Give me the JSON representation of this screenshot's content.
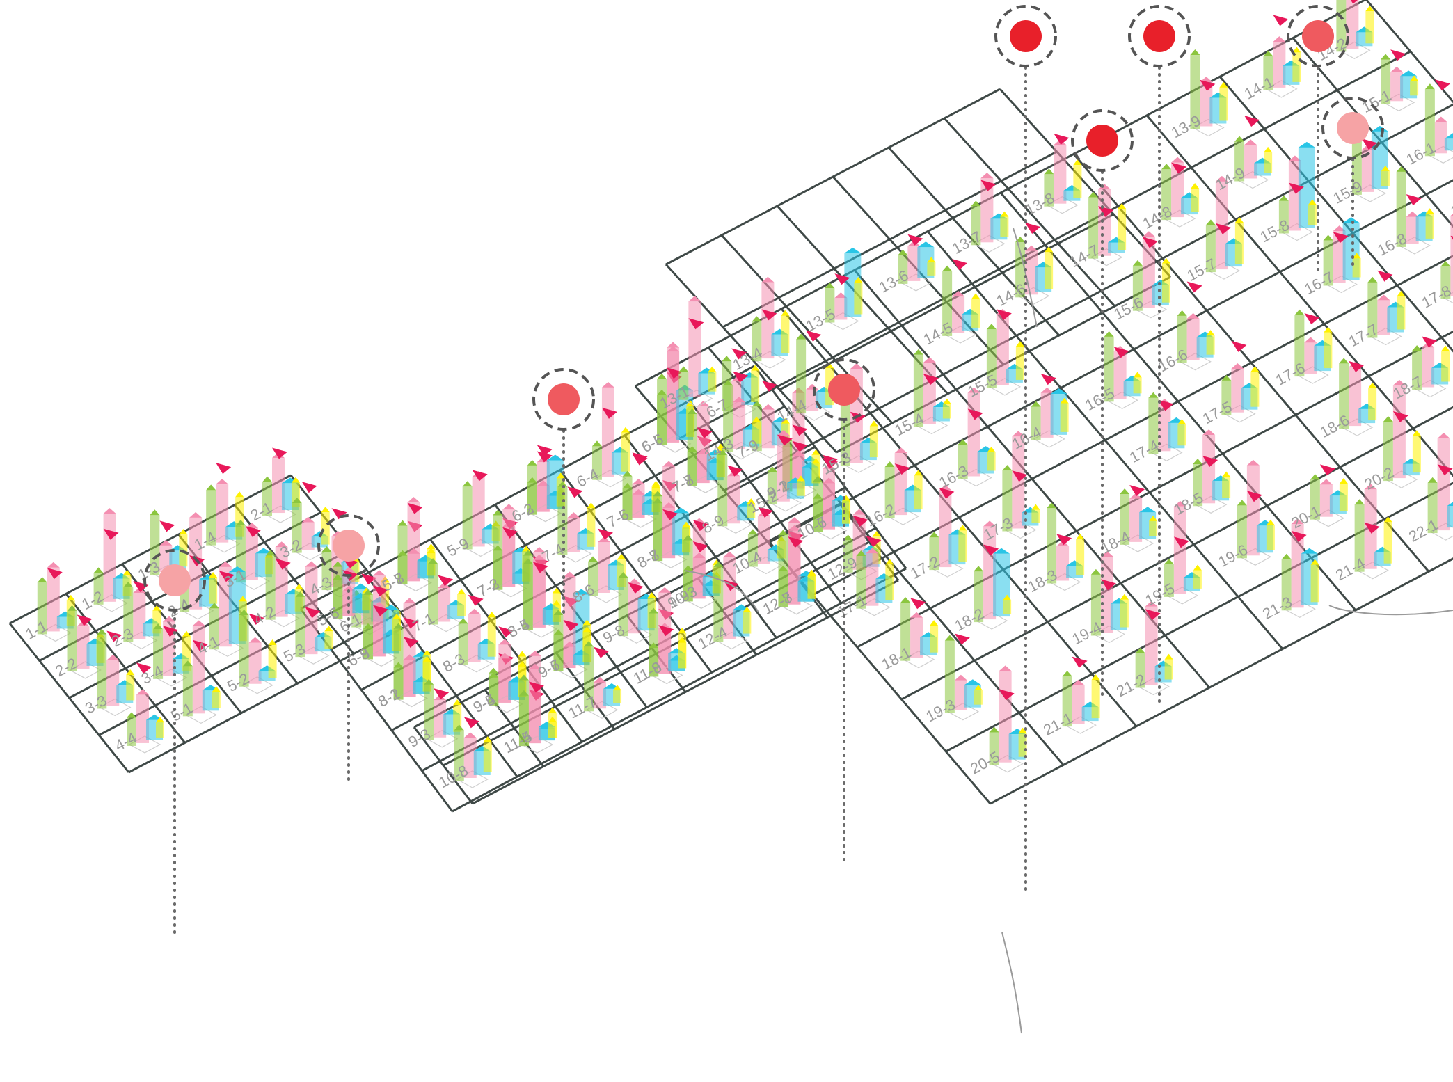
{
  "diagram": {
    "colors": {
      "grid": "#3f4947",
      "green": "#8cc63f",
      "pink": "#f48fb1",
      "magenta": "#e8185a",
      "yellow": "#fff200",
      "cyan": "#29c5e6",
      "orange": "#f7a600",
      "purple": "#6c3f99",
      "marker_strong": "#e8202a",
      "marker_medium": "#ef5a5f",
      "marker_light": "#f6a3a5"
    },
    "icons": [
      "target-marker-icon",
      "flow-arrow-icon",
      "block-prism-icon"
    ],
    "districts": [
      {
        "name": "district-1",
        "cells": [
          {
            "label": "1-1"
          },
          {
            "label": "1-2"
          },
          {
            "label": "1-3"
          },
          {
            "label": "1-4"
          },
          {
            "label": "2-1"
          },
          {
            "label": "2-2"
          },
          {
            "label": "2-3"
          },
          {
            "label": "2-4"
          },
          {
            "label": "3-1"
          },
          {
            "label": "3-2"
          },
          {
            "label": "3-3"
          },
          {
            "label": "3-4"
          },
          {
            "label": "4-1"
          },
          {
            "label": "4-2"
          },
          {
            "label": "4-3"
          },
          {
            "label": "4-4"
          },
          {
            "label": "5-1"
          },
          {
            "label": "5-2"
          },
          {
            "label": "5-3"
          },
          {
            "label": "6-1"
          }
        ]
      },
      {
        "name": "district-2",
        "cells": [
          {
            "label": "5-5"
          },
          {
            "label": "5-6"
          },
          {
            "label": "5-7"
          },
          {
            "label": "5-8"
          },
          {
            "label": "5-9"
          },
          {
            "label": "6-2"
          },
          {
            "label": "6-3"
          },
          {
            "label": "6-4"
          },
          {
            "label": "6-5"
          },
          {
            "label": "6-6"
          },
          {
            "label": "6-7"
          },
          {
            "label": "6-8"
          },
          {
            "label": "6-9"
          },
          {
            "label": "7-1"
          },
          {
            "label": "7-2"
          },
          {
            "label": "7-3"
          },
          {
            "label": "7-4"
          },
          {
            "label": "7-5"
          },
          {
            "label": "7-6"
          },
          {
            "label": "7-7"
          },
          {
            "label": "7-8"
          },
          {
            "label": "7-9"
          },
          {
            "label": "8-1"
          },
          {
            "label": "8-2"
          },
          {
            "label": "8-3"
          },
          {
            "label": "8-4"
          },
          {
            "label": "8-5"
          },
          {
            "label": "8-6"
          },
          {
            "label": "8-7"
          },
          {
            "label": "8-8"
          },
          {
            "label": "8-9"
          },
          {
            "label": "9-1"
          },
          {
            "label": "9-2"
          },
          {
            "label": "9-3"
          },
          {
            "label": "9-4"
          },
          {
            "label": "9-5"
          },
          {
            "label": "9-6"
          },
          {
            "label": "9-7"
          },
          {
            "label": "9-8"
          },
          {
            "label": "9-9"
          },
          {
            "label": "10-3"
          },
          {
            "label": "10-4"
          },
          {
            "label": "10-6"
          },
          {
            "label": "10-7"
          },
          {
            "label": "10-8"
          },
          {
            "label": "11-4"
          },
          {
            "label": "11-5"
          },
          {
            "label": "11-7"
          },
          {
            "label": "11-8"
          },
          {
            "label": "11-9"
          },
          {
            "label": "12-4"
          },
          {
            "label": "12-7"
          },
          {
            "label": "12-8"
          },
          {
            "label": "12-9"
          }
        ]
      },
      {
        "name": "district-3",
        "cells": [
          {
            "label": "13-1"
          },
          {
            "label": "13-4"
          },
          {
            "label": "13-5"
          },
          {
            "label": "13-6"
          },
          {
            "label": "13-7"
          },
          {
            "label": "13-8"
          },
          {
            "label": "13-9"
          },
          {
            "label": "14-1"
          },
          {
            "label": "14-2"
          },
          {
            "label": "14-3"
          },
          {
            "label": "14-4"
          },
          {
            "label": "14-5"
          },
          {
            "label": "14-6"
          },
          {
            "label": "14-7"
          },
          {
            "label": "14-8"
          },
          {
            "label": "14-9"
          },
          {
            "label": "15-1"
          },
          {
            "label": "15-2"
          },
          {
            "label": "15-3"
          },
          {
            "label": "15-4"
          },
          {
            "label": "15-5"
          },
          {
            "label": "15-6"
          },
          {
            "label": "15-7"
          },
          {
            "label": "15-8"
          },
          {
            "label": "15-9"
          },
          {
            "label": "16-1"
          },
          {
            "label": "16-2"
          },
          {
            "label": "16-3"
          },
          {
            "label": "16-4"
          },
          {
            "label": "16-5"
          },
          {
            "label": "16-6"
          },
          {
            "label": "16-7"
          },
          {
            "label": "16-8"
          },
          {
            "label": "16-9"
          },
          {
            "label": "17-1"
          },
          {
            "label": "17-2"
          },
          {
            "label": "17-3"
          },
          {
            "label": "17-4"
          },
          {
            "label": "17-5"
          },
          {
            "label": "17-6"
          },
          {
            "label": "17-7"
          },
          {
            "label": "17-8"
          },
          {
            "label": "18-1"
          },
          {
            "label": "18-2"
          },
          {
            "label": "18-3"
          },
          {
            "label": "18-4"
          },
          {
            "label": "18-5"
          },
          {
            "label": "18-6"
          },
          {
            "label": "18-7"
          },
          {
            "label": "19-1"
          },
          {
            "label": "19-2"
          },
          {
            "label": "19-3"
          },
          {
            "label": "19-4"
          },
          {
            "label": "19-5"
          },
          {
            "label": "19-6"
          },
          {
            "label": "20-1"
          },
          {
            "label": "20-2"
          },
          {
            "label": "20-3"
          },
          {
            "label": "20-4"
          },
          {
            "label": "20-5"
          },
          {
            "label": "21-1"
          },
          {
            "label": "21-2"
          },
          {
            "label": "21-3"
          },
          {
            "label": "21-4"
          },
          {
            "label": "22-1"
          },
          {
            "label": "22-2"
          },
          {
            "label": "22-3"
          }
        ]
      }
    ],
    "markers": [
      {
        "name": "marker-1",
        "intensity": "light"
      },
      {
        "name": "marker-2",
        "intensity": "light"
      },
      {
        "name": "marker-3",
        "intensity": "medium"
      },
      {
        "name": "marker-4",
        "intensity": "medium"
      },
      {
        "name": "marker-5",
        "intensity": "strong"
      },
      {
        "name": "marker-6",
        "intensity": "strong"
      },
      {
        "name": "marker-7",
        "intensity": "strong"
      },
      {
        "name": "marker-8",
        "intensity": "medium"
      },
      {
        "name": "marker-9",
        "intensity": "light"
      }
    ]
  }
}
